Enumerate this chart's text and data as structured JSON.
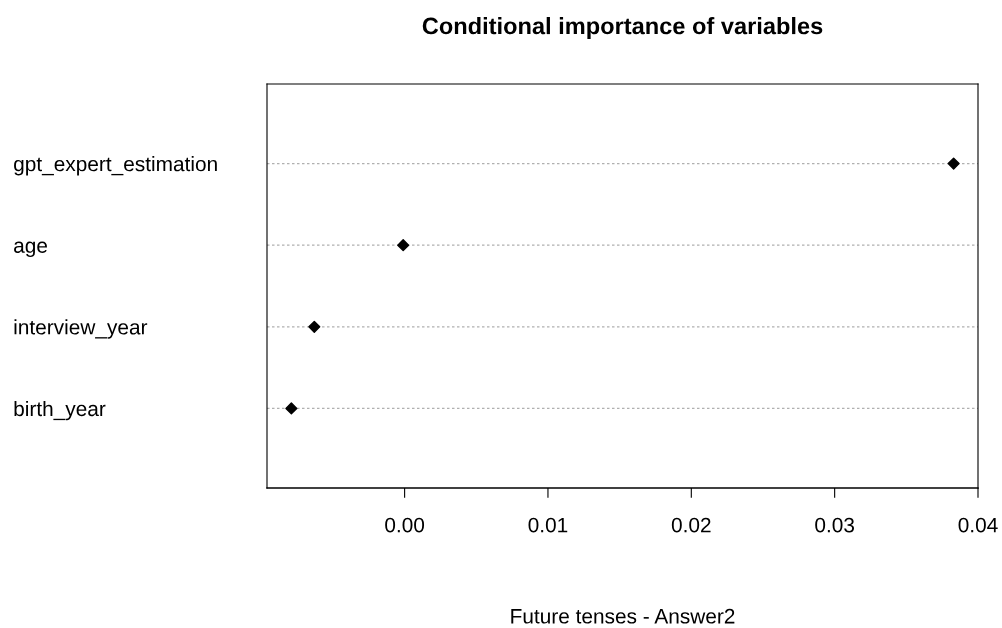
{
  "chart_data": {
    "type": "scatter",
    "title": "Conditional importance of variables",
    "xlabel": "Future tenses - Answer2",
    "orientation": "horizontal",
    "categories": [
      "gpt_expert_estimation",
      "age",
      "interview_year",
      "birth_year"
    ],
    "values": [
      0.0383,
      -0.0001,
      -0.0063,
      -0.0079
    ],
    "color": "#000000",
    "marker": "diamond",
    "xlim": [
      -0.0096,
      0.04
    ],
    "xticks": [
      {
        "value": 0,
        "label": "0.00"
      },
      {
        "value": 0.01,
        "label": "0.01"
      },
      {
        "value": 0.02,
        "label": "0.02"
      },
      {
        "value": 0.03,
        "label": "0.03"
      },
      {
        "value": 0.04,
        "label": "0.04"
      }
    ],
    "grid": "y"
  }
}
